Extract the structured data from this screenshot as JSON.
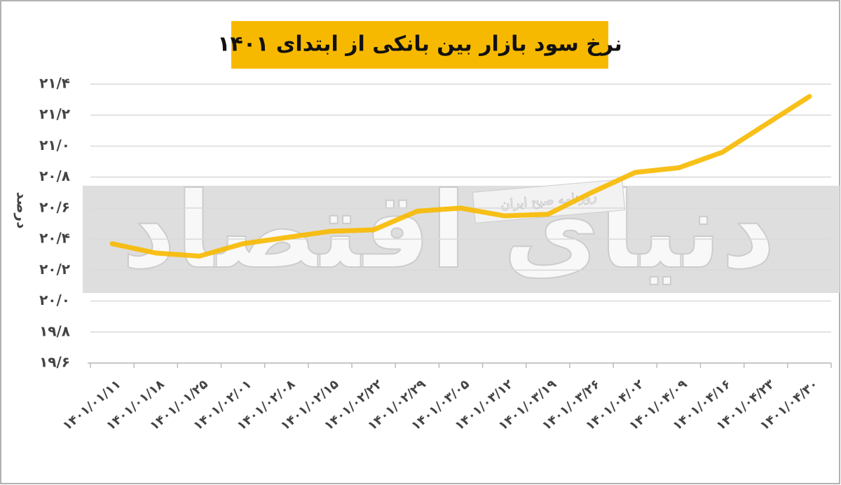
{
  "chart_data": {
    "type": "line",
    "title": "نرخ سود بازار بین بانکی از ابتدای ۱۴۰۱",
    "y_label": "درصد",
    "annotations": [
      "دنیای اقتصاد",
      "روزنامه صبح ایران"
    ],
    "categories": [
      "۱۴۰۱/۰۱/۱۱",
      "۱۴۰۱/۰۱/۱۸",
      "۱۴۰۱/۰۱/۲۵",
      "۱۴۰۱/۰۲/۰۱",
      "۱۴۰۱/۰۲/۰۸",
      "۱۴۰۱/۰۲/۱۵",
      "۱۴۰۱/۰۲/۲۲",
      "۱۴۰۱/۰۲/۲۹",
      "۱۴۰۱/۰۳/۰۵",
      "۱۴۰۱/۰۳/۱۲",
      "۱۴۰۱/۰۳/۱۹",
      "۱۴۰۱/۰۳/۲۶",
      "۱۴۰۱/۰۴/۰۲",
      "۱۴۰۱/۰۴/۰۹",
      "۱۴۰۱/۰۴/۱۶",
      "۱۴۰۱/۰۴/۲۳",
      "۱۴۰۱/۰۴/۳۰"
    ],
    "values": [
      20.37,
      20.31,
      20.29,
      20.37,
      20.41,
      20.45,
      20.46,
      20.58,
      20.6,
      20.55,
      20.56,
      20.7,
      20.83,
      20.86,
      20.96,
      21.14,
      21.32
    ],
    "color": "#f7b900",
    "ylim": [
      19.6,
      21.4
    ],
    "yticks": [
      {
        "value": 19.6,
        "label": "۱۹/۶"
      },
      {
        "value": 19.8,
        "label": "۱۹/۸"
      },
      {
        "value": 20.0,
        "label": "۲۰/۰"
      },
      {
        "value": 20.2,
        "label": "۲۰/۲"
      },
      {
        "value": 20.4,
        "label": "۲۰/۴"
      },
      {
        "value": 20.6,
        "label": "۲۰/۶"
      },
      {
        "value": 20.8,
        "label": "۲۰/۸"
      },
      {
        "value": 21.0,
        "label": "۲۱/۰"
      },
      {
        "value": 21.2,
        "label": "۲۱/۲"
      },
      {
        "value": 21.4,
        "label": "۲۱/۴"
      }
    ],
    "grid": true
  }
}
